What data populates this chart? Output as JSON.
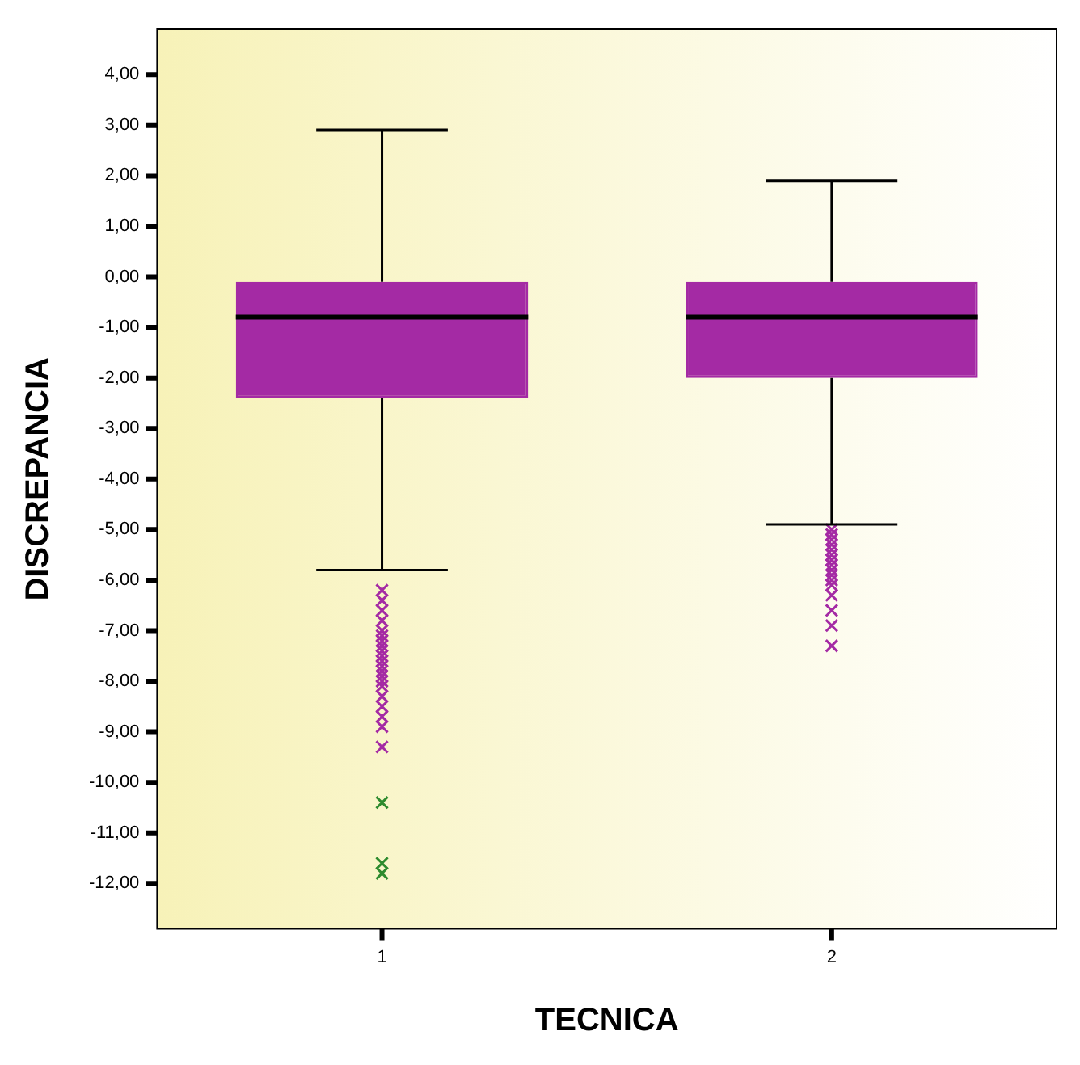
{
  "chart_data": {
    "type": "box",
    "xlabel": "TECNICA",
    "ylabel": "DISCREPANCIA",
    "categories": [
      "1",
      "2"
    ],
    "ylim": [
      -12.9,
      4.9
    ],
    "yticks": [
      {
        "value": 4,
        "label": "4,00"
      },
      {
        "value": 3,
        "label": "3,00"
      },
      {
        "value": 2,
        "label": "2,00"
      },
      {
        "value": 1,
        "label": "1,00"
      },
      {
        "value": 0,
        "label": "0,00"
      },
      {
        "value": -1,
        "label": "-1,00"
      },
      {
        "value": -2,
        "label": "-2,00"
      },
      {
        "value": -3,
        "label": "-3,00"
      },
      {
        "value": -4,
        "label": "-4,00"
      },
      {
        "value": -5,
        "label": "-5,00"
      },
      {
        "value": -6,
        "label": "-6,00"
      },
      {
        "value": -7,
        "label": "-7,00"
      },
      {
        "value": -8,
        "label": "-8,00"
      },
      {
        "value": -9,
        "label": "-9,00"
      },
      {
        "value": -10,
        "label": "-10,00"
      },
      {
        "value": -11,
        "label": "-11,00"
      },
      {
        "value": -12,
        "label": "-12,00"
      }
    ],
    "grid": false,
    "legend": false,
    "marker": "cross",
    "series": [
      {
        "type": "box",
        "color": "#a42aa4",
        "boxes": [
          {
            "low": -5.8,
            "q1": -2.4,
            "median": -0.8,
            "q3": -0.1,
            "high": 2.9,
            "outliers": [
              -6.2,
              -6.4,
              -6.6,
              -6.8,
              -7.0,
              -7.1,
              -7.2,
              -7.3,
              -7.4,
              -7.5,
              -7.6,
              -7.7,
              -7.8,
              -7.9,
              -8.0,
              -8.1,
              -8.3,
              -8.5,
              -8.7,
              -8.9,
              -9.3
            ]
          },
          {
            "low": -4.9,
            "q1": -2.0,
            "median": -0.8,
            "q3": -0.1,
            "high": 1.9,
            "outliers": [
              -5.0,
              -5.1,
              -5.2,
              -5.3,
              -5.4,
              -5.5,
              -5.6,
              -5.7,
              -5.8,
              -5.9,
              -6.0,
              -6.1,
              -6.3,
              -6.6,
              -6.9,
              -7.3
            ]
          }
        ]
      },
      {
        "type": "scatter",
        "color": "#2e8b2e",
        "x": [
          "1",
          "1",
          "1"
        ],
        "values": [
          -10.4,
          -11.6,
          -11.8
        ]
      }
    ]
  }
}
